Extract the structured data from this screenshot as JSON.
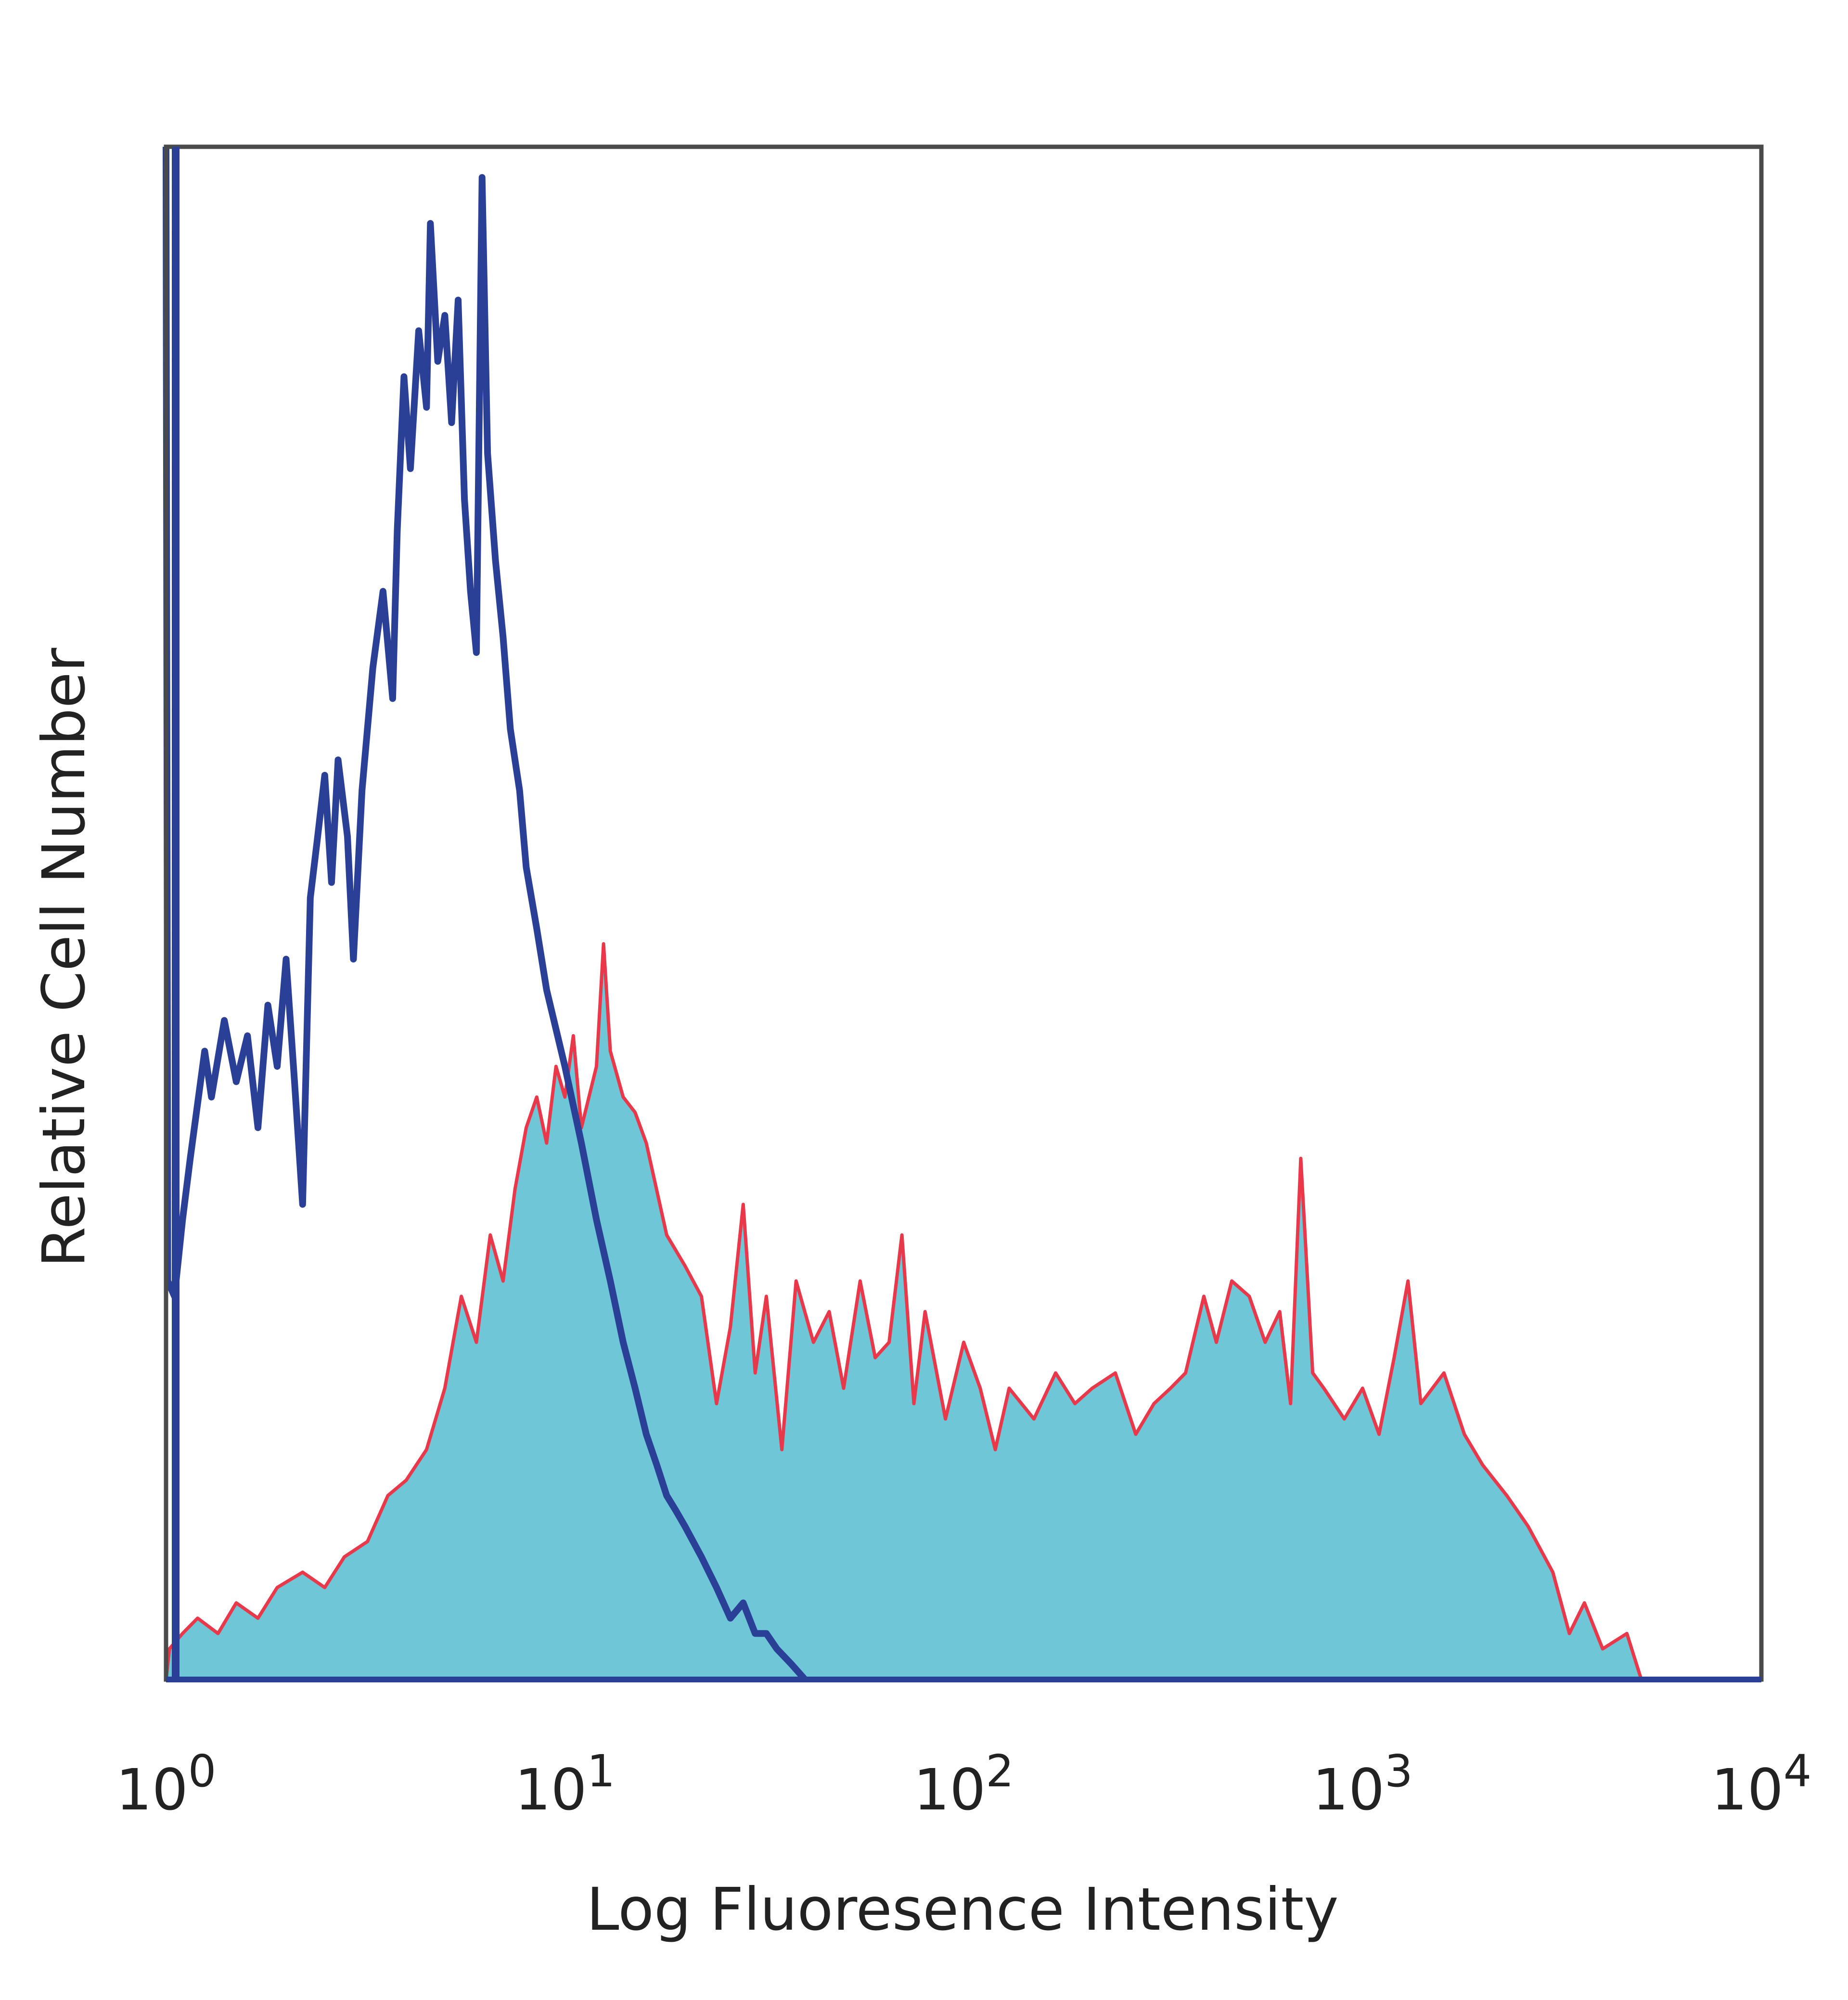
{
  "chart_data": {
    "type": "area",
    "title": "",
    "xlabel": "Log Fluoresence Intensity",
    "ylabel": "Relative Cell Number",
    "x_scale": "log",
    "xlim": [
      1,
      10000
    ],
    "ylim": [
      0,
      100
    ],
    "grid": false,
    "legend": "none",
    "x_ticks": [
      {
        "base": "10",
        "exp": "0",
        "value": 1
      },
      {
        "base": "10",
        "exp": "1",
        "value": 10
      },
      {
        "base": "10",
        "exp": "2",
        "value": 100
      },
      {
        "base": "10",
        "exp": "3",
        "value": 1000
      },
      {
        "base": "10",
        "exp": "4",
        "value": 10000
      }
    ],
    "series": [
      {
        "style": "filled",
        "fill_color": "#6ec6d6",
        "line_color": "#e8384a",
        "points": [
          [
            1.0,
            0
          ],
          [
            1.02,
            2
          ],
          [
            1.1,
            3
          ],
          [
            1.2,
            4
          ],
          [
            1.35,
            3
          ],
          [
            1.5,
            5
          ],
          [
            1.7,
            4
          ],
          [
            1.9,
            6
          ],
          [
            2.2,
            7
          ],
          [
            2.5,
            6
          ],
          [
            2.8,
            8
          ],
          [
            3.2,
            9
          ],
          [
            3.6,
            12
          ],
          [
            4.0,
            13
          ],
          [
            4.5,
            15
          ],
          [
            5.0,
            19
          ],
          [
            5.5,
            25
          ],
          [
            6.0,
            22
          ],
          [
            6.5,
            29
          ],
          [
            7.0,
            26
          ],
          [
            7.5,
            32
          ],
          [
            8.0,
            36
          ],
          [
            8.5,
            38
          ],
          [
            9.0,
            35
          ],
          [
            9.5,
            40
          ],
          [
            10.0,
            38
          ],
          [
            10.5,
            42
          ],
          [
            11.0,
            36
          ],
          [
            12.0,
            40
          ],
          [
            12.5,
            48
          ],
          [
            13.0,
            41
          ],
          [
            14.0,
            38
          ],
          [
            15.0,
            37
          ],
          [
            16.0,
            35
          ],
          [
            18.0,
            29
          ],
          [
            20.0,
            27
          ],
          [
            22.0,
            25
          ],
          [
            24.0,
            18
          ],
          [
            26.0,
            23
          ],
          [
            28.0,
            31
          ],
          [
            30.0,
            20
          ],
          [
            32.0,
            25
          ],
          [
            35.0,
            15
          ],
          [
            38.0,
            26
          ],
          [
            42.0,
            22
          ],
          [
            46.0,
            24
          ],
          [
            50.0,
            19
          ],
          [
            55.0,
            26
          ],
          [
            60.0,
            21
          ],
          [
            65.0,
            22
          ],
          [
            70.0,
            29
          ],
          [
            75.0,
            18
          ],
          [
            80.0,
            24
          ],
          [
            90.0,
            17
          ],
          [
            100.0,
            22
          ],
          [
            110.0,
            19
          ],
          [
            120.0,
            15
          ],
          [
            130.0,
            19
          ],
          [
            150.0,
            17
          ],
          [
            170.0,
            20
          ],
          [
            190.0,
            18
          ],
          [
            210.0,
            19
          ],
          [
            240.0,
            20
          ],
          [
            270.0,
            16
          ],
          [
            300.0,
            18
          ],
          [
            330.0,
            19
          ],
          [
            360.0,
            20
          ],
          [
            400.0,
            25
          ],
          [
            430.0,
            22
          ],
          [
            470.0,
            26
          ],
          [
            520.0,
            25
          ],
          [
            570.0,
            22
          ],
          [
            620.0,
            24
          ],
          [
            660.0,
            18
          ],
          [
            700.0,
            34
          ],
          [
            750.0,
            20
          ],
          [
            800.0,
            19
          ],
          [
            900.0,
            17
          ],
          [
            1000.0,
            19
          ],
          [
            1100.0,
            16
          ],
          [
            1200.0,
            21
          ],
          [
            1300.0,
            26
          ],
          [
            1400.0,
            18
          ],
          [
            1600.0,
            20
          ],
          [
            1800.0,
            16
          ],
          [
            2000.0,
            14
          ],
          [
            2300.0,
            12
          ],
          [
            2600.0,
            10
          ],
          [
            3000.0,
            7
          ],
          [
            3300.0,
            3
          ],
          [
            3600.0,
            5
          ],
          [
            4000.0,
            2
          ],
          [
            4600.0,
            3
          ],
          [
            5000.0,
            0
          ]
        ]
      },
      {
        "style": "line",
        "line_color": "#2a3f96",
        "points": [
          [
            1.0,
            100
          ],
          [
            1.01,
            26
          ],
          [
            1.05,
            25
          ],
          [
            1.1,
            30
          ],
          [
            1.15,
            34
          ],
          [
            1.25,
            41
          ],
          [
            1.3,
            38
          ],
          [
            1.4,
            43
          ],
          [
            1.5,
            39
          ],
          [
            1.6,
            42
          ],
          [
            1.7,
            36
          ],
          [
            1.8,
            44
          ],
          [
            1.9,
            40
          ],
          [
            2.0,
            47
          ],
          [
            2.1,
            39
          ],
          [
            2.2,
            31
          ],
          [
            2.3,
            51
          ],
          [
            2.4,
            55
          ],
          [
            2.5,
            59
          ],
          [
            2.6,
            52
          ],
          [
            2.7,
            60
          ],
          [
            2.85,
            55
          ],
          [
            2.95,
            47
          ],
          [
            3.1,
            58
          ],
          [
            3.3,
            66
          ],
          [
            3.5,
            71
          ],
          [
            3.7,
            64
          ],
          [
            3.8,
            75
          ],
          [
            3.95,
            85
          ],
          [
            4.1,
            79
          ],
          [
            4.3,
            88
          ],
          [
            4.5,
            83
          ],
          [
            4.6,
            95
          ],
          [
            4.8,
            86
          ],
          [
            5.0,
            89
          ],
          [
            5.2,
            82
          ],
          [
            5.4,
            90
          ],
          [
            5.6,
            77
          ],
          [
            5.8,
            71
          ],
          [
            6.0,
            67
          ],
          [
            6.2,
            98
          ],
          [
            6.4,
            80
          ],
          [
            6.7,
            73
          ],
          [
            7.0,
            68
          ],
          [
            7.3,
            62
          ],
          [
            7.7,
            58
          ],
          [
            8.0,
            53
          ],
          [
            8.5,
            49
          ],
          [
            9.0,
            45
          ],
          [
            10.0,
            40
          ],
          [
            11.0,
            35
          ],
          [
            12.0,
            30
          ],
          [
            13.0,
            26
          ],
          [
            14.0,
            22
          ],
          [
            15.0,
            19
          ],
          [
            16.0,
            16
          ],
          [
            17.0,
            14
          ],
          [
            18.0,
            12
          ],
          [
            19.0,
            11
          ],
          [
            20.0,
            10
          ],
          [
            22.0,
            8
          ],
          [
            24.0,
            6
          ],
          [
            26.0,
            4
          ],
          [
            28.0,
            5
          ],
          [
            30.0,
            3
          ],
          [
            32.0,
            3
          ],
          [
            34.0,
            2
          ],
          [
            37.0,
            1
          ],
          [
            40.0,
            0
          ]
        ]
      }
    ]
  }
}
